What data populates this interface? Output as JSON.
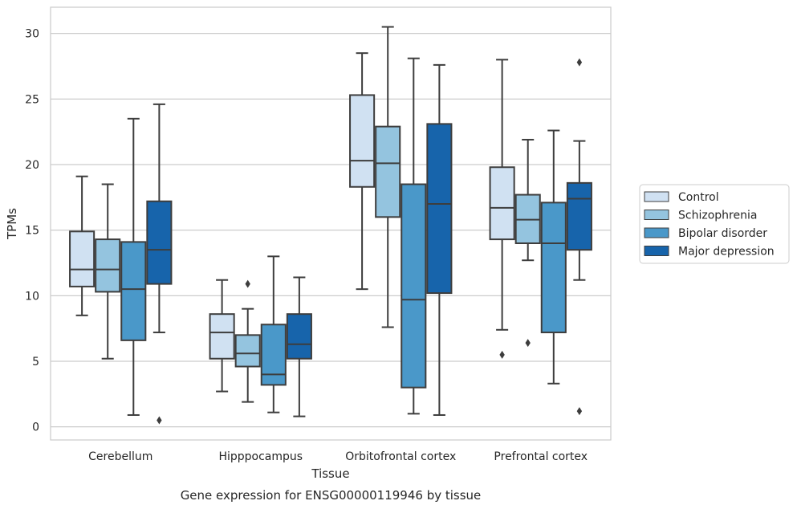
{
  "chart_data": {
    "type": "box",
    "title": "",
    "caption": "Gene expression for ENSG00000119946 by tissue",
    "xlabel": "Tissue",
    "ylabel": "TPMs",
    "ylim": [
      -1,
      32
    ],
    "yticks": [
      0,
      5,
      10,
      15,
      20,
      25,
      30
    ],
    "grid": "horizontal",
    "legend_position": "right",
    "categories": [
      "Cerebellum",
      "Hipppocampus",
      "Orbitofrontal cortex",
      "Prefrontal cortex"
    ],
    "series": [
      {
        "name": "Control",
        "color": "#d0e1f2",
        "boxes": [
          {
            "whisker_low": 8.5,
            "q1": 10.7,
            "median": 12.0,
            "q3": 14.9,
            "whisker_high": 19.1,
            "outliers": []
          },
          {
            "whisker_low": 2.7,
            "q1": 5.2,
            "median": 7.2,
            "q3": 8.6,
            "whisker_high": 11.2,
            "outliers": []
          },
          {
            "whisker_low": 10.5,
            "q1": 18.3,
            "median": 20.3,
            "q3": 25.3,
            "whisker_high": 28.5,
            "outliers": []
          },
          {
            "whisker_low": 7.4,
            "q1": 14.3,
            "median": 16.7,
            "q3": 19.8,
            "whisker_high": 28.0,
            "outliers": [
              5.5
            ]
          }
        ]
      },
      {
        "name": "Schizophrenia",
        "color": "#94c4df",
        "boxes": [
          {
            "whisker_low": 5.2,
            "q1": 10.3,
            "median": 12.0,
            "q3": 14.3,
            "whisker_high": 18.5,
            "outliers": []
          },
          {
            "whisker_low": 1.9,
            "q1": 4.6,
            "median": 5.6,
            "q3": 7.0,
            "whisker_high": 9.0,
            "outliers": [
              10.9
            ]
          },
          {
            "whisker_low": 7.6,
            "q1": 16.0,
            "median": 20.1,
            "q3": 22.9,
            "whisker_high": 30.5,
            "outliers": []
          },
          {
            "whisker_low": 12.7,
            "q1": 14.0,
            "median": 15.8,
            "q3": 17.7,
            "whisker_high": 21.9,
            "outliers": [
              6.4
            ]
          }
        ]
      },
      {
        "name": "Bipolar disorder",
        "color": "#4a98c9",
        "boxes": [
          {
            "whisker_low": 0.9,
            "q1": 6.6,
            "median": 10.5,
            "q3": 14.1,
            "whisker_high": 23.5,
            "outliers": []
          },
          {
            "whisker_low": 1.1,
            "q1": 3.2,
            "median": 4.0,
            "q3": 7.8,
            "whisker_high": 13.0,
            "outliers": []
          },
          {
            "whisker_low": 1.0,
            "q1": 3.0,
            "median": 9.7,
            "q3": 18.5,
            "whisker_high": 28.1,
            "outliers": []
          },
          {
            "whisker_low": 3.3,
            "q1": 7.2,
            "median": 14.0,
            "q3": 17.1,
            "whisker_high": 22.6,
            "outliers": []
          }
        ]
      },
      {
        "name": "Major depression",
        "color": "#1764ab",
        "boxes": [
          {
            "whisker_low": 7.2,
            "q1": 10.9,
            "median": 13.5,
            "q3": 17.2,
            "whisker_high": 24.6,
            "outliers": [
              0.5
            ]
          },
          {
            "whisker_low": 0.8,
            "q1": 5.2,
            "median": 6.3,
            "q3": 8.6,
            "whisker_high": 11.4,
            "outliers": []
          },
          {
            "whisker_low": 0.9,
            "q1": 10.2,
            "median": 17.0,
            "q3": 23.1,
            "whisker_high": 27.6,
            "outliers": []
          },
          {
            "whisker_low": 11.2,
            "q1": 13.5,
            "median": 17.4,
            "q3": 18.6,
            "whisker_high": 21.8,
            "outliers": [
              27.8,
              1.2
            ]
          }
        ]
      }
    ]
  }
}
